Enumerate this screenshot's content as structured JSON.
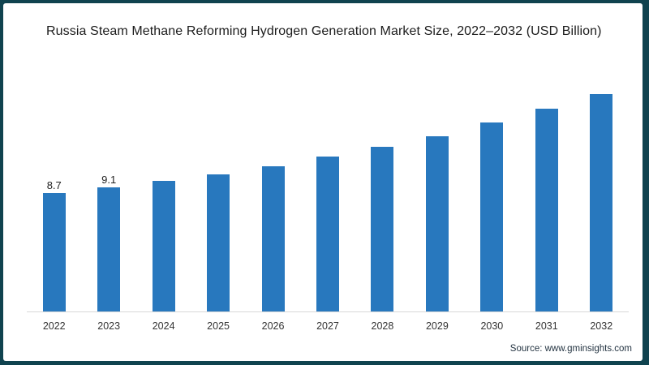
{
  "title": "Russia Steam Methane Reforming Hydrogen Generation Market Size, 2022–2032 (USD Billion)",
  "source": {
    "prefix": "Source:",
    "url": "www.gminsights.com"
  },
  "colors": {
    "bar": "#2878be",
    "frame": "#10434f",
    "axis_line": "#d8d8d8"
  },
  "chart_data": {
    "type": "bar",
    "title": "Russia Steam Methane Reforming Hydrogen Generation Market Size, 2022–2032 (USD Billion)",
    "categories": [
      "2022",
      "2023",
      "2024",
      "2025",
      "2026",
      "2027",
      "2028",
      "2029",
      "2030",
      "2031",
      "2032"
    ],
    "values": [
      8.7,
      9.1,
      9.6,
      10.1,
      10.7,
      11.4,
      12.1,
      12.9,
      13.9,
      14.9,
      16.0
    ],
    "data_labels": [
      "8.7",
      "9.1",
      "",
      "",
      "",
      "",
      "",
      "",
      "",
      "",
      ""
    ],
    "xlabel": "",
    "ylabel": "",
    "ylim": [
      0,
      17.9
    ],
    "grid": false,
    "legend": false,
    "bar_color": "#2878be",
    "unit": "USD Billion"
  }
}
